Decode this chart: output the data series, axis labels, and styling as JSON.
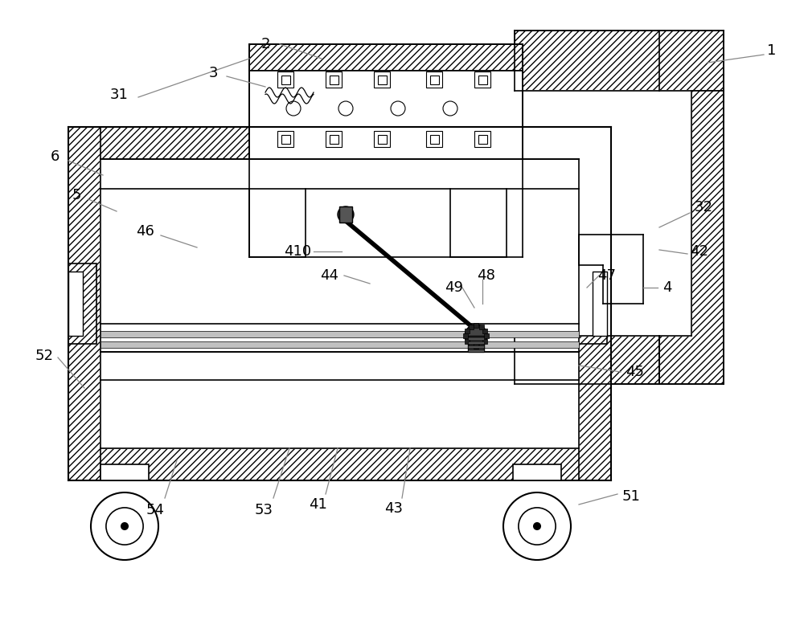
{
  "background_color": "#ffffff",
  "fig_width": 10.0,
  "fig_height": 7.73,
  "line_color": "#000000",
  "hatch_color": "#000000"
}
